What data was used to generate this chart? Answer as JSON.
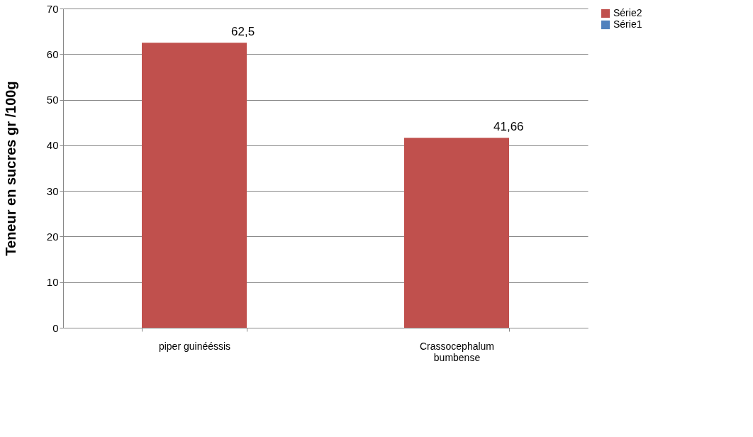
{
  "chart_data": {
    "type": "bar",
    "ylabel": "Teneur   en  sucres gr /100g",
    "categories": [
      "piper  guinééssis",
      "Crassocephalum bumbense"
    ],
    "series": [
      {
        "name": "Série2",
        "color": "#c0504d",
        "values": [
          62.5,
          41.66
        ],
        "value_labels": [
          "62,5",
          "41,66"
        ]
      },
      {
        "name": "Série1",
        "color": "#4f81bd",
        "values": [
          null,
          null
        ]
      }
    ],
    "ylim": [
      0,
      70
    ],
    "yticks": [
      0,
      10,
      20,
      30,
      40,
      50,
      60,
      70
    ],
    "grid": "y",
    "legend": "right"
  }
}
